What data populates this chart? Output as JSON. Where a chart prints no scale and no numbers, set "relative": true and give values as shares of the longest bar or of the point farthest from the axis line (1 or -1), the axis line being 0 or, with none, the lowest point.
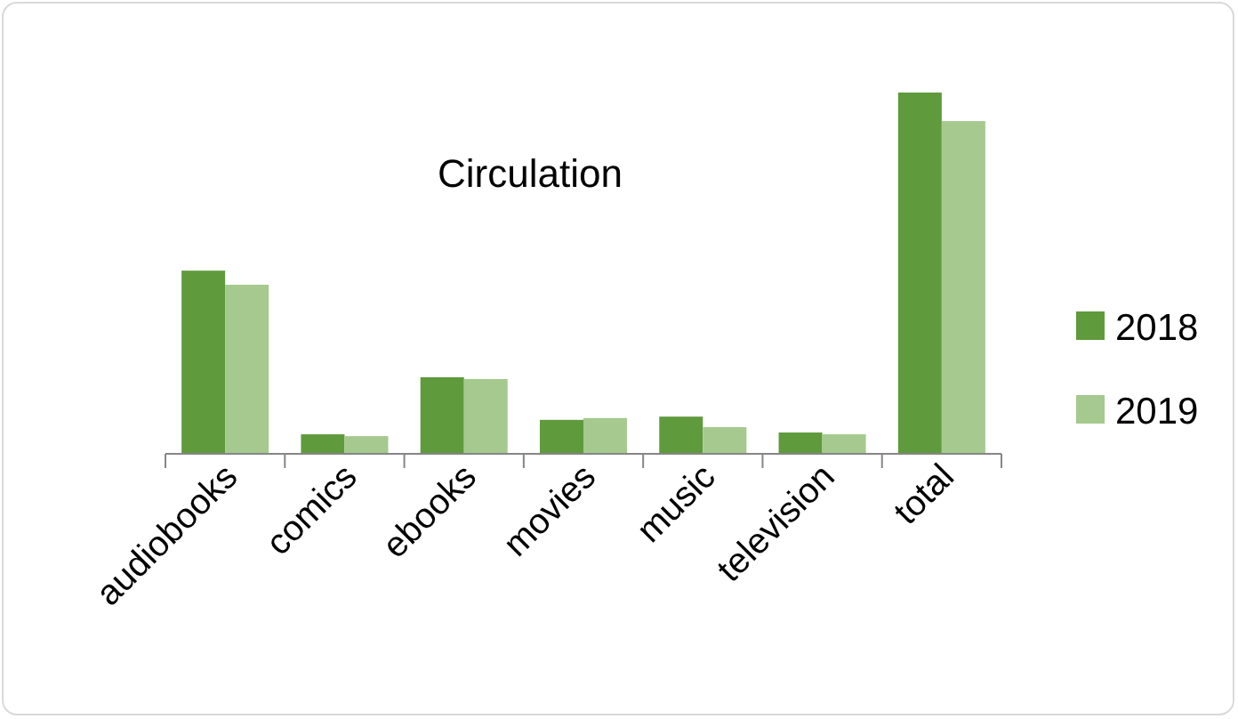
{
  "chart_data": {
    "type": "bar",
    "title": "Circulation",
    "relative": true,
    "legend": "right",
    "categories": [
      "audiobooks",
      "comics",
      "ebooks",
      "movies",
      "music",
      "television",
      "total"
    ],
    "series": [
      {
        "name": "2018",
        "color": "#5f9a3c",
        "values": [
          0.507,
          0.054,
          0.212,
          0.094,
          0.103,
          0.059,
          1
        ]
      },
      {
        "name": "2019",
        "color": "#a5c98e",
        "values": [
          0.468,
          0.049,
          0.207,
          0.099,
          0.074,
          0.054,
          0.921
        ]
      }
    ]
  }
}
